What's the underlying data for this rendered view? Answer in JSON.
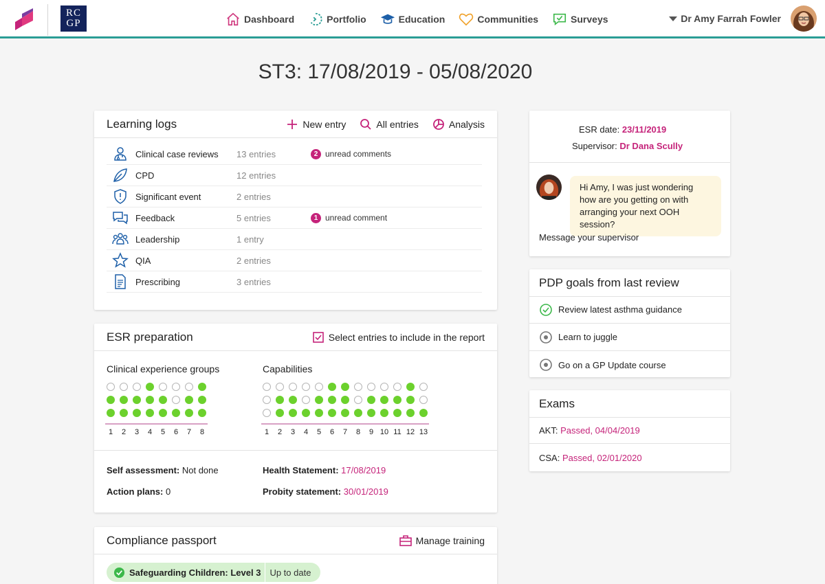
{
  "header": {
    "logo_text": "RC GP",
    "nav": [
      {
        "label": "Dashboard",
        "icon": "home-icon"
      },
      {
        "label": "Portfolio",
        "icon": "portfolio-icon"
      },
      {
        "label": "Education",
        "icon": "graduation-cap-icon"
      },
      {
        "label": "Communities",
        "icon": "heart-icon"
      },
      {
        "label": "Surveys",
        "icon": "survey-icon"
      }
    ],
    "user_name": "Dr Amy Farrah Fowler"
  },
  "page_title": "ST3: 17/08/2019 - 05/08/2020",
  "learning_logs": {
    "title": "Learning logs",
    "actions": {
      "new_entry": "New entry",
      "all_entries": "All entries",
      "analysis": "Analysis"
    },
    "rows": [
      {
        "name": "Clinical case reviews",
        "count": "13 entries",
        "badge": "2",
        "unread": "unread comments",
        "icon": "clinician-icon"
      },
      {
        "name": "CPD",
        "count": "12 entries",
        "badge": "",
        "unread": "",
        "icon": "leaf-icon"
      },
      {
        "name": "Significant event",
        "count": "2 entries",
        "badge": "",
        "unread": "",
        "icon": "shield-icon"
      },
      {
        "name": "Feedback",
        "count": "5 entries",
        "badge": "1",
        "unread": "unread comment",
        "icon": "speech-bubbles-icon"
      },
      {
        "name": "Leadership",
        "count": "1 entry",
        "badge": "",
        "unread": "",
        "icon": "group-icon"
      },
      {
        "name": "QIA",
        "count": "2 entries",
        "badge": "",
        "unread": "",
        "icon": "star-icon"
      },
      {
        "name": "Prescribing",
        "count": "3 entries",
        "badge": "",
        "unread": "",
        "icon": "document-icon"
      }
    ]
  },
  "esr_prep": {
    "title": "ESR preparation",
    "select_label": "Select entries to include in the report",
    "ceg_title": "Clinical experience groups",
    "cap_title": "Capabilities",
    "ceg_ticks": [
      "1",
      "2",
      "3",
      "4",
      "5",
      "6",
      "7",
      "8"
    ],
    "cap_ticks": [
      "1",
      "2",
      "3",
      "4",
      "5",
      "6",
      "7",
      "8",
      "9",
      "10",
      "11",
      "12",
      "13"
    ],
    "ceg_levels": [
      2,
      2,
      2,
      3,
      2,
      1,
      2,
      3
    ],
    "cap_levels": [
      0,
      2,
      2,
      1,
      2,
      3,
      3,
      1,
      2,
      2,
      2,
      3,
      1
    ],
    "self_assessment_label": "Self assessment:",
    "self_assessment_value": "Not done",
    "action_plans_label": "Action plans:",
    "action_plans_value": "0",
    "health_label": "Health Statement:",
    "health_value": "17/08/2019",
    "probity_label": "Probity statement:",
    "probity_value": "30/01/2019"
  },
  "compliance": {
    "title": "Compliance passport",
    "manage_label": "Manage training",
    "item_name": "Safeguarding Children: Level 3",
    "item_status": "Up to date"
  },
  "esr_card": {
    "date_label": "ESR date:",
    "date_value": "23/11/2019",
    "supervisor_label": "Supervisor:",
    "supervisor_value": "Dr Dana Scully",
    "message": "Hi Amy, I was just wondering how are you getting on with arranging your next OOH session?",
    "message_link": "Message your supervisor"
  },
  "pdp": {
    "title": "PDP goals from last review",
    "goals": [
      {
        "label": "Review latest asthma guidance",
        "done": true
      },
      {
        "label": "Learn to juggle",
        "done": false
      },
      {
        "label": "Go on a GP Update course",
        "done": false
      }
    ]
  },
  "exams": {
    "title": "Exams",
    "items": [
      {
        "label": "AKT:",
        "value": "Passed, 04/04/2019"
      },
      {
        "label": "CSA:",
        "value": "Passed, 02/01/2020"
      }
    ]
  },
  "colors": {
    "accent": "#c5237a",
    "teal": "#2a9d95",
    "green": "#6cd12d"
  }
}
